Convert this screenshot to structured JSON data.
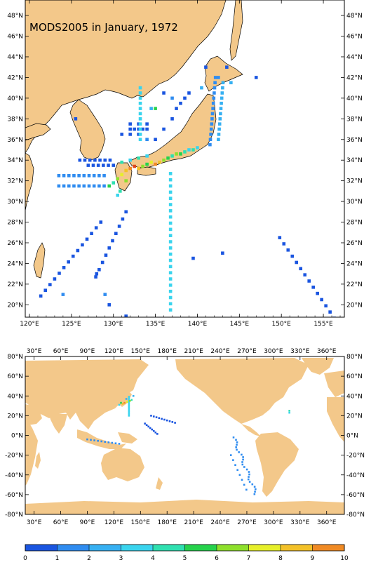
{
  "title": "MODS2005 in January, 1972",
  "regional_map": {
    "lon_labels": [
      "120°E",
      "125°E",
      "130°E",
      "135°E",
      "140°E",
      "145°E",
      "150°E",
      "155°E"
    ],
    "lon_values": [
      120,
      125,
      130,
      135,
      140,
      145,
      150,
      155
    ],
    "lat_labels": [
      "20°N",
      "22°N",
      "24°N",
      "26°N",
      "28°N",
      "30°N",
      "32°N",
      "34°N",
      "36°N",
      "38°N",
      "40°N",
      "42°N",
      "44°N",
      "46°N",
      "48°N"
    ],
    "lat_values": [
      20,
      22,
      24,
      26,
      28,
      30,
      32,
      34,
      36,
      38,
      40,
      42,
      44,
      46,
      48
    ],
    "lon_range": [
      119.5,
      157.5
    ],
    "lat_range": [
      18.8,
      49.5
    ]
  },
  "global_map": {
    "lon_labels": [
      "30°E",
      "60°E",
      "90°E",
      "120°E",
      "150°E",
      "180°E",
      "210°E",
      "240°E",
      "270°E",
      "300°E",
      "330°E",
      "360°E"
    ],
    "lon_values": [
      30,
      60,
      90,
      120,
      150,
      180,
      210,
      240,
      270,
      300,
      330,
      360
    ],
    "lat_labels": [
      "80°N",
      "60°N",
      "40°N",
      "20°N",
      "0°N",
      "-20°N",
      "-40°N",
      "-60°N",
      "-80°N"
    ],
    "lat_values": [
      80,
      60,
      40,
      20,
      0,
      -20,
      -40,
      -60,
      -80
    ],
    "lon_range": [
      20,
      380
    ],
    "lat_range": [
      -80,
      80
    ]
  },
  "colorbar": {
    "labels": [
      "0",
      "1",
      "2",
      "3",
      "4",
      "5",
      "6",
      "7",
      "8",
      "9",
      "10"
    ],
    "colors": [
      "#1a55e0",
      "#2f8cf0",
      "#36b0f2",
      "#39d4ee",
      "#2fe0b0",
      "#26d24c",
      "#8ee02c",
      "#e6ef2a",
      "#f3c128",
      "#f08a24",
      "#e0481c"
    ]
  },
  "colors": {
    "land": "#f3c88a",
    "ocean": "#ffffff",
    "coast": "#000000"
  }
}
